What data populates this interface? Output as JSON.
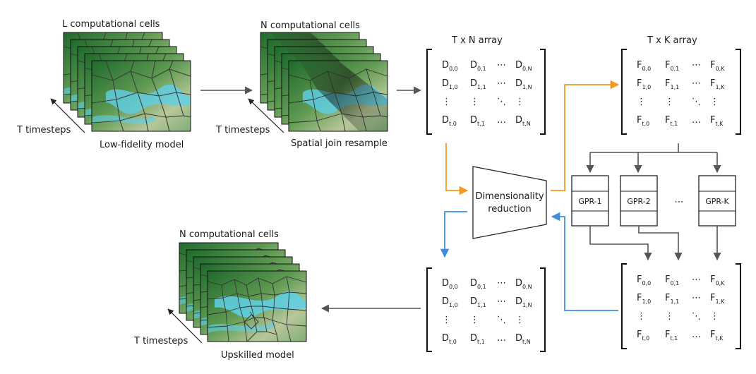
{
  "left_panel": {
    "title": "L computational cells",
    "timesteps": "T timesteps",
    "caption": "Low-fidelity model"
  },
  "middle_panel": {
    "title": "N computational cells",
    "timesteps": "T timesteps",
    "caption": "Spatial join resample"
  },
  "bottom_panel": {
    "title": "N computational cells",
    "timesteps": "T timesteps",
    "caption": "Upskilled model"
  },
  "array_d": {
    "title": "T x N array",
    "rows": [
      [
        {
          "b": "D",
          "s": "0,0"
        },
        {
          "b": "D",
          "s": "0,1"
        },
        {
          "b": "⋯",
          "s": ""
        },
        {
          "b": "D",
          "s": "0,N"
        }
      ],
      [
        {
          "b": "D",
          "s": "1,0"
        },
        {
          "b": "D",
          "s": "1,1"
        },
        {
          "b": "⋯",
          "s": ""
        },
        {
          "b": "D",
          "s": "1,N"
        }
      ],
      [
        {
          "b": "⋮",
          "s": ""
        },
        {
          "b": "⋮",
          "s": ""
        },
        {
          "b": "⋱",
          "s": ""
        },
        {
          "b": "⋮",
          "s": ""
        }
      ],
      [
        {
          "b": "D",
          "s": "t,0"
        },
        {
          "b": "D",
          "s": "t,1"
        },
        {
          "b": "…",
          "s": ""
        },
        {
          "b": "D",
          "s": "t,N"
        }
      ]
    ]
  },
  "array_f": {
    "title": "T x K array",
    "rows": [
      [
        {
          "b": "F",
          "s": "0,0"
        },
        {
          "b": "F",
          "s": "0,1"
        },
        {
          "b": "⋯",
          "s": ""
        },
        {
          "b": "F",
          "s": "0,K"
        }
      ],
      [
        {
          "b": "F",
          "s": "1,0"
        },
        {
          "b": "F",
          "s": "1,1"
        },
        {
          "b": "⋯",
          "s": ""
        },
        {
          "b": "F",
          "s": "1,K"
        }
      ],
      [
        {
          "b": "⋮",
          "s": ""
        },
        {
          "b": "⋮",
          "s": ""
        },
        {
          "b": "⋱",
          "s": ""
        },
        {
          "b": "⋮",
          "s": ""
        }
      ],
      [
        {
          "b": "F",
          "s": "t,0"
        },
        {
          "b": "F",
          "s": "t,1"
        },
        {
          "b": "…",
          "s": ""
        },
        {
          "b": "F",
          "s": "t,K"
        }
      ]
    ]
  },
  "dim_reduction": {
    "line1": "Dimensionality",
    "line2": "reduction"
  },
  "gpr": {
    "labels": [
      "GPR-1",
      "GPR-2",
      "GPR-K"
    ],
    "ellipsis": "⋯"
  },
  "colors": {
    "arrow_gray": "#555555",
    "arrow_orange": "#f39a1e",
    "arrow_blue": "#3f8fe0",
    "terrain_dark": "#1e6a2c",
    "terrain_mid": "#5f9a52",
    "terrain_light": "#b8c79a",
    "water": "#5fd0e8"
  }
}
